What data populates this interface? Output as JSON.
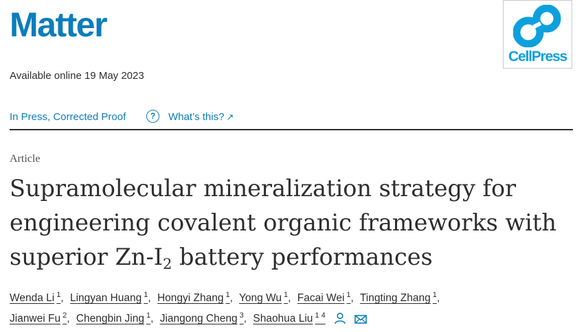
{
  "journal": {
    "name": "Matter",
    "color": "#0c7dbb"
  },
  "publisher": {
    "name": "CellPress",
    "color": "#0ea0dd"
  },
  "available_online": "Available online 19 May 2023",
  "status": {
    "link": "In Press, Corrected Proof",
    "help_icon": "?",
    "whats_this": "What’s this?",
    "arrow_icon": "↗"
  },
  "article_type": "Article",
  "title": {
    "line1": "Supramolecular mineralization strategy for",
    "line2": "engineering covalent organic frameworks with",
    "line3_pre": "superior Zn-I",
    "line3_sub": "2",
    "line3_post": " battery performances"
  },
  "authors": [
    {
      "name": "Wenda Li",
      "aff": "1"
    },
    {
      "name": "Lingyan Huang",
      "aff": "1"
    },
    {
      "name": "Hongyi Zhang",
      "aff": "1"
    },
    {
      "name": "Yong Wu",
      "aff": "1"
    },
    {
      "name": "Facai Wei",
      "aff": "1"
    },
    {
      "name": "Tingting Zhang",
      "aff": "1"
    },
    {
      "name": "Jianwei Fu",
      "aff": "2"
    },
    {
      "name": "Chengbin Jing",
      "aff": "1"
    },
    {
      "name": "Jiangong Cheng",
      "aff": "3"
    },
    {
      "name": "Shaohua Liu",
      "aff": "1 4"
    }
  ],
  "icons": {
    "corresponding": "person-icon",
    "email": "mail-icon"
  }
}
